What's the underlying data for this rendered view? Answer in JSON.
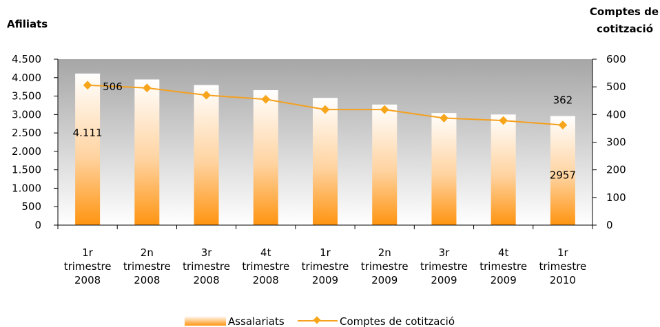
{
  "chart_data": {
    "type": "bar",
    "left_axis_title": "Afiliats",
    "right_axis_title_lines": [
      "Comptes de",
      "cotització"
    ],
    "categories": [
      [
        "1r",
        "trimestre",
        "2008"
      ],
      [
        "2n",
        "trimestre",
        "2008"
      ],
      [
        "3r",
        "trimestre",
        "2008"
      ],
      [
        "4t",
        "trimestre",
        "2008"
      ],
      [
        "1r",
        "trimestre",
        "2009"
      ],
      [
        "2n",
        "trimestre",
        "2009"
      ],
      [
        "3r",
        "trimestre",
        "2009"
      ],
      [
        "4t",
        "trimestre",
        "2009"
      ],
      [
        "1r",
        "trimestre",
        "2010"
      ]
    ],
    "y_left": {
      "min": 0,
      "max": 4500,
      "ticks": [
        0,
        500,
        1000,
        1500,
        2000,
        2500,
        3000,
        3500,
        4000,
        4500
      ],
      "tick_labels": [
        "0",
        "500",
        "1.000",
        "1.500",
        "2.000",
        "2.500",
        "3.000",
        "3.500",
        "4.000",
        "4.500"
      ]
    },
    "y_right": {
      "min": 0,
      "max": 600,
      "ticks": [
        0,
        100,
        200,
        300,
        400,
        500,
        600
      ],
      "tick_labels": [
        "0",
        "100",
        "200",
        "300",
        "400",
        "500",
        "600"
      ]
    },
    "series": [
      {
        "name": "Assalariats",
        "kind": "bar",
        "axis": "left",
        "values": [
          4111,
          3950,
          3800,
          3660,
          3450,
          3270,
          3040,
          3000,
          2957
        ],
        "labels": [
          {
            "index": 0,
            "text": "4.111",
            "at_value": 2500
          },
          {
            "index": 8,
            "text": "2957",
            "at_value": 1350
          }
        ]
      },
      {
        "name": "Comptes de cotització",
        "kind": "line",
        "axis": "right",
        "values": [
          506,
          496,
          470,
          455,
          418,
          418,
          387,
          378,
          362
        ],
        "labels": [
          {
            "index": 0,
            "text": "506",
            "at_value": 500
          },
          {
            "index": 8,
            "text": "362",
            "at_value": 452
          }
        ]
      }
    ],
    "legend_position": "bottom",
    "colors": {
      "plot_top": "#a6a6a6",
      "plot_bottom": "#ffffff",
      "bar_top": "#ffffff",
      "bar_bottom": "#ff9410",
      "line": "#f5a01e",
      "marker": "#f7a51b"
    }
  }
}
